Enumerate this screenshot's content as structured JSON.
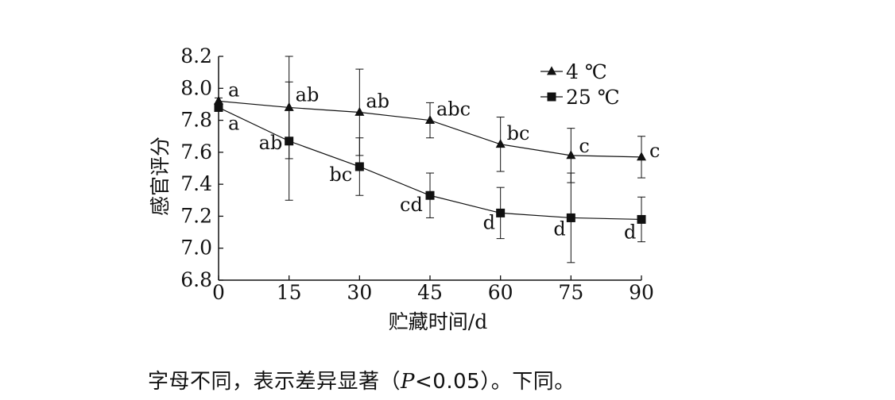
{
  "chart_data": {
    "type": "line",
    "title": "",
    "xlabel": "贮藏时间/d",
    "ylabel": "感官评分",
    "x": [
      0,
      15,
      30,
      45,
      60,
      75,
      90
    ],
    "xticks": [
      "0",
      "15",
      "30",
      "45",
      "60",
      "75",
      "90"
    ],
    "yticks": [
      "6.8",
      "7.0",
      "7.2",
      "7.4",
      "7.6",
      "7.8",
      "8.0",
      "8.2"
    ],
    "xlim": [
      0,
      90
    ],
    "ylim": [
      6.8,
      8.2
    ],
    "grid": false,
    "legend_position": "top-right",
    "series": [
      {
        "name": "4 ℃",
        "marker": "triangle",
        "values": [
          7.92,
          7.88,
          7.85,
          7.8,
          7.65,
          7.58,
          7.57
        ],
        "errors": [
          0.02,
          0.32,
          0.27,
          0.11,
          0.17,
          0.17,
          0.13
        ],
        "letters": [
          "a",
          "ab",
          "ab",
          "abc",
          "bc",
          "c",
          "c"
        ]
      },
      {
        "name": "25 ℃",
        "marker": "square",
        "values": [
          7.88,
          7.67,
          7.51,
          7.33,
          7.22,
          7.19,
          7.18
        ],
        "errors": [
          0.02,
          0.37,
          0.18,
          0.14,
          0.16,
          0.28,
          0.14
        ],
        "letters": [
          "a",
          "ab",
          "bc",
          "cd",
          "d",
          "d",
          "d"
        ]
      }
    ]
  },
  "caption": {
    "prefix": "字母不同，表示差异显著（",
    "p_symbol": "P",
    "condition": "<0.05",
    "suffix": "）。下同。"
  }
}
